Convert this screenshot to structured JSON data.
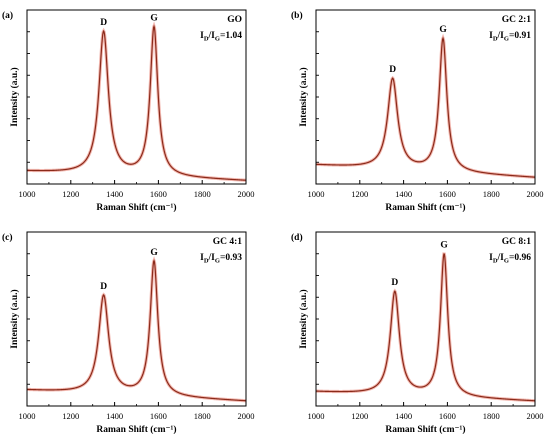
{
  "figure": {
    "panels": [
      {
        "panel_label": "(a)",
        "sample": "GO",
        "ratio_label": "I_D/I_G=1.04"
      },
      {
        "panel_label": "(b)",
        "sample": "GC 2:1",
        "ratio_label": "I_D/I_G=0.91"
      },
      {
        "panel_label": "(c)",
        "sample": "GC 4:1",
        "ratio_label": "I_D/I_G=0.93"
      },
      {
        "panel_label": "(d)",
        "sample": "GC 8:1",
        "ratio_label": "I_D/I_G=0.96"
      }
    ]
  },
  "colors": {
    "spectrum": "#8b2a1a",
    "spectrum_shadow": "#f2b8b0",
    "axis": "#000000"
  },
  "chart_data": [
    {
      "type": "line",
      "panel_label": "(a)",
      "annotations": [
        "GO",
        "I_D/I_G=1.04",
        "D",
        "G"
      ],
      "xlabel": "Raman Shift (cm⁻¹)",
      "ylabel": "Intensity (a.u.)",
      "xlim": [
        1000,
        2000
      ],
      "x_ticks": [
        1000,
        1200,
        1400,
        1600,
        1800,
        2000
      ],
      "ylim": [
        0,
        1.1
      ],
      "y_tick_labels_shown": false,
      "grid": false,
      "baseline": {
        "start": 0.08,
        "end": 0.02
      },
      "peaks": [
        {
          "label": "D",
          "position": 1350,
          "intensity": 0.9,
          "width": 52
        },
        {
          "label": "G",
          "position": 1580,
          "intensity": 0.94,
          "width": 42
        }
      ]
    },
    {
      "type": "line",
      "panel_label": "(b)",
      "annotations": [
        "GC 2:1",
        "I_D/I_G=0.91",
        "D",
        "G"
      ],
      "xlabel": "Raman Shift (cm⁻¹)",
      "ylabel": "Intensity (a.u.)",
      "xlim": [
        1000,
        2000
      ],
      "x_ticks": [
        1000,
        1200,
        1400,
        1600,
        1800,
        2000
      ],
      "ylim": [
        0,
        1.1
      ],
      "y_tick_labels_shown": false,
      "grid": false,
      "baseline": {
        "start": 0.12,
        "end": 0.04
      },
      "peaks": [
        {
          "label": "D",
          "position": 1350,
          "intensity": 0.57,
          "width": 55
        },
        {
          "label": "G",
          "position": 1580,
          "intensity": 0.84,
          "width": 42
        }
      ]
    },
    {
      "type": "line",
      "panel_label": "(c)",
      "annotations": [
        "GC 4:1",
        "I_D/I_G=0.93",
        "D",
        "G"
      ],
      "xlabel": "Raman Shift (cm⁻¹)",
      "ylabel": "Intensity (a.u.)",
      "xlim": [
        1000,
        2000
      ],
      "x_ticks": [
        1000,
        1200,
        1400,
        1600,
        1800,
        2000
      ],
      "ylim": [
        0,
        1.1
      ],
      "y_tick_labels_shown": false,
      "grid": false,
      "baseline": {
        "start": 0.1,
        "end": 0.03
      },
      "peaks": [
        {
          "label": "D",
          "position": 1350,
          "intensity": 0.62,
          "width": 55
        },
        {
          "label": "G",
          "position": 1580,
          "intensity": 0.85,
          "width": 42
        }
      ]
    },
    {
      "type": "line",
      "panel_label": "(d)",
      "annotations": [
        "GC 8:1",
        "I_D/I_G=0.96",
        "D",
        "G"
      ],
      "xlabel": "Raman Shift (cm⁻¹)",
      "ylabel": "Intensity (a.u.)",
      "xlim": [
        1000,
        2000
      ],
      "x_ticks": [
        1000,
        1200,
        1400,
        1600,
        1800,
        2000
      ],
      "ylim": [
        0,
        1.1
      ],
      "y_tick_labels_shown": false,
      "grid": false,
      "baseline": {
        "start": 0.09,
        "end": 0.03
      },
      "peaks": [
        {
          "label": "D",
          "position": 1360,
          "intensity": 0.65,
          "width": 50
        },
        {
          "label": "G",
          "position": 1585,
          "intensity": 0.9,
          "width": 40
        }
      ]
    }
  ]
}
